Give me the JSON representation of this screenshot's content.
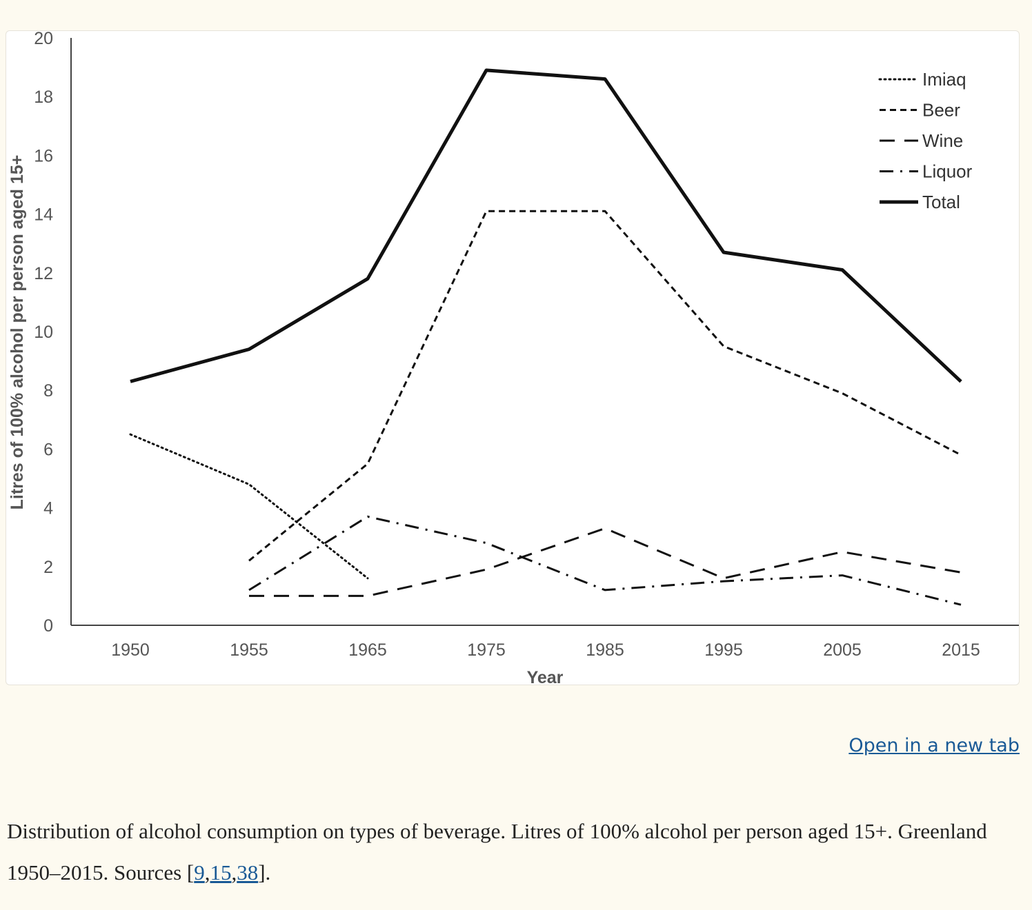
{
  "chart_data": {
    "type": "line",
    "title": "",
    "xlabel": "Year",
    "ylabel": "Litres of 100% alcohol per person aged 15+",
    "ylim": [
      0,
      20
    ],
    "yticks": [
      0,
      2,
      4,
      6,
      8,
      10,
      12,
      14,
      16,
      18,
      20
    ],
    "categories": [
      "1950",
      "1955",
      "1965",
      "1975",
      "1985",
      "1995",
      "2005",
      "2015"
    ],
    "legend_position": "top-right",
    "series": [
      {
        "name": "Imiaq",
        "style": "dotted",
        "values": [
          6.5,
          4.8,
          1.6,
          null,
          null,
          null,
          null,
          null
        ]
      },
      {
        "name": "Beer",
        "style": "short-dash",
        "values": [
          null,
          2.2,
          5.5,
          14.1,
          14.1,
          9.5,
          7.9,
          5.8
        ]
      },
      {
        "name": "Wine",
        "style": "long-dash",
        "values": [
          null,
          1.0,
          1.0,
          1.9,
          3.3,
          1.6,
          2.5,
          1.8
        ]
      },
      {
        "name": "Liquor",
        "style": "dash-dot",
        "values": [
          null,
          1.2,
          3.7,
          2.8,
          1.2,
          1.5,
          1.7,
          0.7
        ]
      },
      {
        "name": "Total",
        "style": "solid",
        "values": [
          8.3,
          9.4,
          11.8,
          18.9,
          18.6,
          12.7,
          12.1,
          8.3
        ]
      }
    ]
  },
  "open_link": {
    "label": "Open in a new tab"
  },
  "caption": {
    "text": "Distribution of alcohol consumption on types of beverage. Litres of 100% alcohol per person aged 15+. Greenland 1950–2015. Sources [",
    "refs": [
      "9",
      "15",
      "38"
    ],
    "sep": ",",
    "end": "]."
  },
  "colors": {
    "line": "#111111",
    "axis": "#444444",
    "tick_text": "#555555",
    "link": "#1a5a96"
  }
}
